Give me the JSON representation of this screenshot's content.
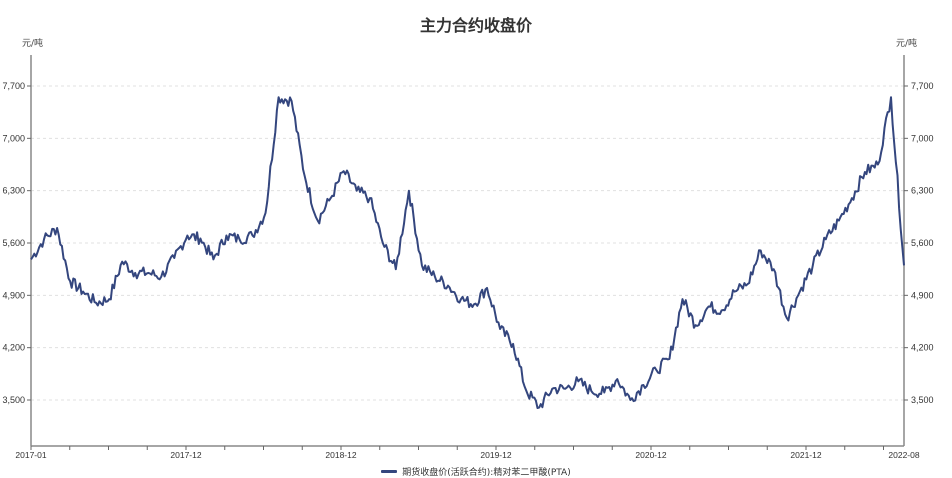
{
  "title": "主力合约收盘价",
  "unit_left": "元/吨",
  "unit_right": "元/吨",
  "legend": {
    "label": "期货收盘价(活跃合约):精对苯二甲酸(PTA)",
    "color": "#34467e"
  },
  "colors": {
    "line": "#34467e",
    "axis": "#666666",
    "grid": "#e0e0e0",
    "text": "#333333"
  },
  "chart_data": {
    "type": "line",
    "title": "主力合约收盘价",
    "xlabel": "",
    "ylabel": "元/吨",
    "ylabel_right": "元/吨",
    "ylim": [
      3000,
      8000
    ],
    "y_ticks": [
      3500,
      4200,
      4900,
      5600,
      6300,
      7000,
      7700
    ],
    "y_tick_labels": [
      "3,500",
      "4,200",
      "4,900",
      "5,600",
      "6,300",
      "7,000",
      "7,700"
    ],
    "x_tick_labels": [
      "2017-01",
      "2017-12",
      "2018-12",
      "2019-12",
      "2020-12",
      "2021-12",
      "2022-08"
    ],
    "grid": true,
    "legend_position": "bottom",
    "series": [
      {
        "name": "期货收盘价(活跃合约):精对苯二甲酸(PTA)",
        "x": [
          "2017-01",
          "2017-02",
          "2017-03",
          "2017-04",
          "2017-05",
          "2017-06",
          "2017-07",
          "2017-08",
          "2017-09",
          "2017-10",
          "2017-11",
          "2017-12",
          "2018-01",
          "2018-02",
          "2018-03",
          "2018-04",
          "2018-05",
          "2018-06",
          "2018-07",
          "2018-08",
          "2018-09",
          "2018-10",
          "2018-11",
          "2018-12",
          "2019-01",
          "2019-02",
          "2019-03",
          "2019-04",
          "2019-05",
          "2019-06",
          "2019-07",
          "2019-08",
          "2019-09",
          "2019-10",
          "2019-11",
          "2019-12",
          "2020-01",
          "2020-02",
          "2020-03",
          "2020-04",
          "2020-05",
          "2020-06",
          "2020-07",
          "2020-08",
          "2020-09",
          "2020-10",
          "2020-11",
          "2020-12",
          "2021-01",
          "2021-02",
          "2021-03",
          "2021-04",
          "2021-05",
          "2021-06",
          "2021-07",
          "2021-08",
          "2021-09",
          "2021-10",
          "2021-11",
          "2021-12",
          "2022-01",
          "2022-02",
          "2022-03",
          "2022-04",
          "2022-05",
          "2022-06",
          "2022-07",
          "2022-08"
        ],
        "values": [
          5380,
          5650,
          5800,
          5090,
          4950,
          4800,
          4850,
          5350,
          5200,
          5200,
          5150,
          5400,
          5700,
          5660,
          5380,
          5700,
          5650,
          5700,
          6000,
          7550,
          7500,
          6500,
          5900,
          6200,
          6560,
          6300,
          6200,
          5600,
          5250,
          6300,
          5300,
          5150,
          5030,
          4850,
          4780,
          5000,
          4450,
          4250,
          3630,
          3400,
          3650,
          3650,
          3750,
          3620,
          3600,
          3780,
          3500,
          3700,
          3900,
          4050,
          4850,
          4500,
          4750,
          4700,
          4950,
          5050,
          5500,
          5250,
          4600,
          4950,
          5300,
          5650,
          5900,
          6200,
          6550,
          6650,
          7550,
          5300
        ]
      }
    ]
  }
}
